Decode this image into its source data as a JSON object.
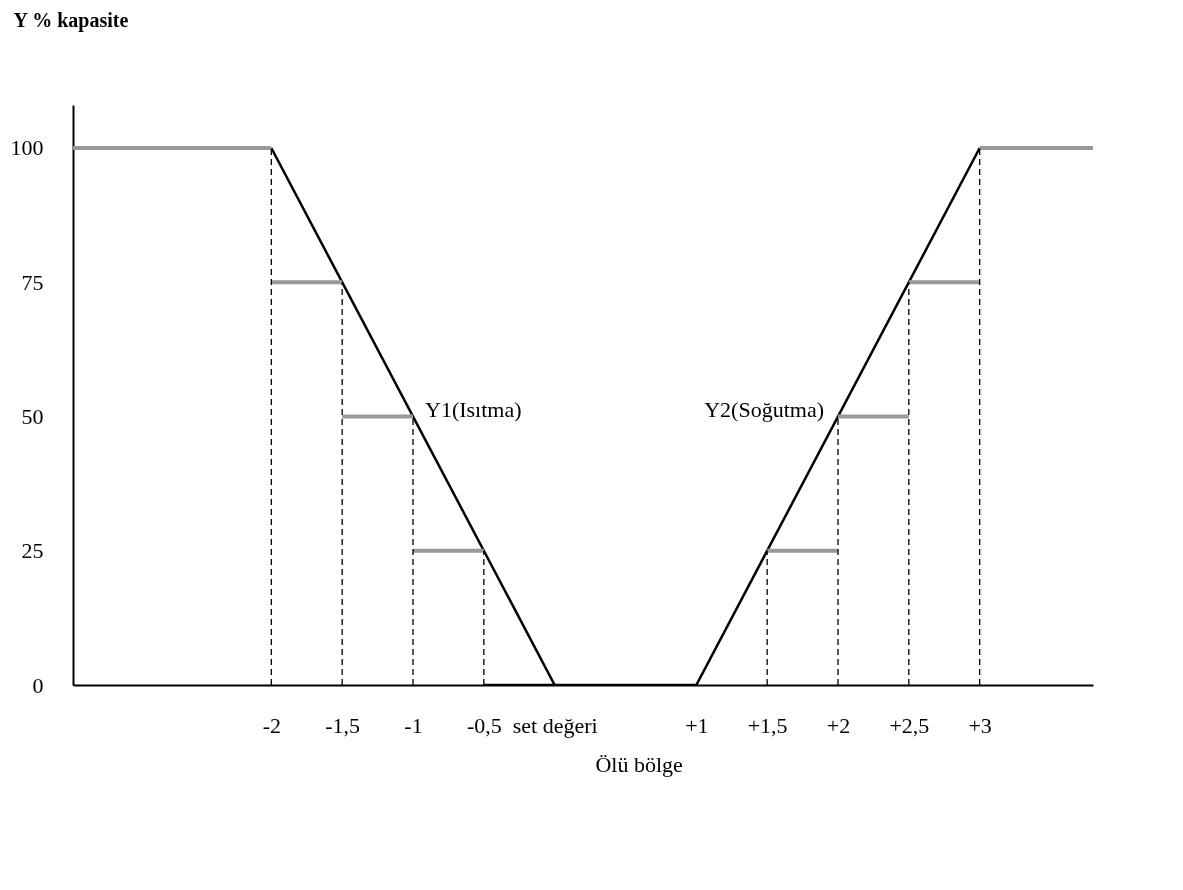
{
  "chart_data": {
    "type": "line",
    "ylabel": "Y % kapasite",
    "xlim": [
      -3.4,
      3.8
    ],
    "ylim": [
      0,
      108
    ],
    "xticks": [
      -2,
      {
        "value": -1.5,
        "label": "-1,5"
      },
      -1,
      {
        "value": -0.5,
        "label": "-0,5"
      },
      {
        "value": 0,
        "label": "set değeri"
      },
      {
        "value": 1,
        "label": "+1"
      },
      {
        "value": 1.5,
        "label": "+1,5"
      },
      {
        "value": 2,
        "label": "+2"
      },
      {
        "value": 2.5,
        "label": "+2,5"
      },
      {
        "value": 3,
        "label": "+3"
      }
    ],
    "yticks": [
      0,
      25,
      50,
      75,
      100
    ],
    "series": [
      {
        "name": "Y1(Isıtma)",
        "color": "#000000",
        "x": [
          -2,
          0
        ],
        "values": [
          100,
          0
        ]
      },
      {
        "name": "Y2(Soğutma)",
        "color": "#000000",
        "x": [
          1,
          3
        ],
        "values": [
          0,
          100
        ]
      },
      {
        "color": "#000000",
        "x": [
          -0.5,
          1
        ],
        "values": [
          0,
          0
        ]
      },
      {
        "color": "#999999",
        "x": [
          -3.4,
          -2
        ],
        "values": [
          100,
          100
        ]
      },
      {
        "color": "#999999",
        "x": [
          -2,
          -1.5
        ],
        "values": [
          75,
          75
        ]
      },
      {
        "color": "#999999",
        "x": [
          -1.5,
          -1
        ],
        "values": [
          50,
          50
        ]
      },
      {
        "color": "#999999",
        "x": [
          -1,
          -0.5
        ],
        "values": [
          25,
          25
        ]
      },
      {
        "color": "#999999",
        "x": [
          1.5,
          2
        ],
        "values": [
          25,
          25
        ]
      },
      {
        "color": "#999999",
        "x": [
          2,
          2.5
        ],
        "values": [
          50,
          50
        ]
      },
      {
        "color": "#999999",
        "x": [
          2.5,
          3
        ],
        "values": [
          75,
          75
        ]
      },
      {
        "color": "#999999",
        "x": [
          3,
          3.8
        ],
        "values": [
          100,
          100
        ]
      },
      {
        "color": "#000000",
        "line_style": "dashed",
        "x": [
          -2,
          -2
        ],
        "values": [
          0,
          100
        ]
      },
      {
        "color": "#000000",
        "line_style": "dashed",
        "x": [
          -1.5,
          -1.5
        ],
        "values": [
          0,
          75
        ]
      },
      {
        "color": "#000000",
        "line_style": "dashed",
        "x": [
          -1,
          -1
        ],
        "values": [
          0,
          50
        ]
      },
      {
        "color": "#000000",
        "line_style": "dashed",
        "x": [
          -0.5,
          -0.5
        ],
        "values": [
          0,
          25
        ]
      },
      {
        "color": "#000000",
        "line_style": "dashed",
        "x": [
          1.5,
          1.5
        ],
        "values": [
          0,
          25
        ]
      },
      {
        "color": "#000000",
        "line_style": "dashed",
        "x": [
          2,
          2
        ],
        "values": [
          0,
          50
        ]
      },
      {
        "color": "#000000",
        "line_style": "dashed",
        "x": [
          2.5,
          2.5
        ],
        "values": [
          0,
          75
        ]
      },
      {
        "color": "#000000",
        "line_style": "dashed",
        "x": [
          3,
          3
        ],
        "values": [
          0,
          100
        ]
      }
    ],
    "annotations": [
      "Ölü bölge"
    ]
  }
}
